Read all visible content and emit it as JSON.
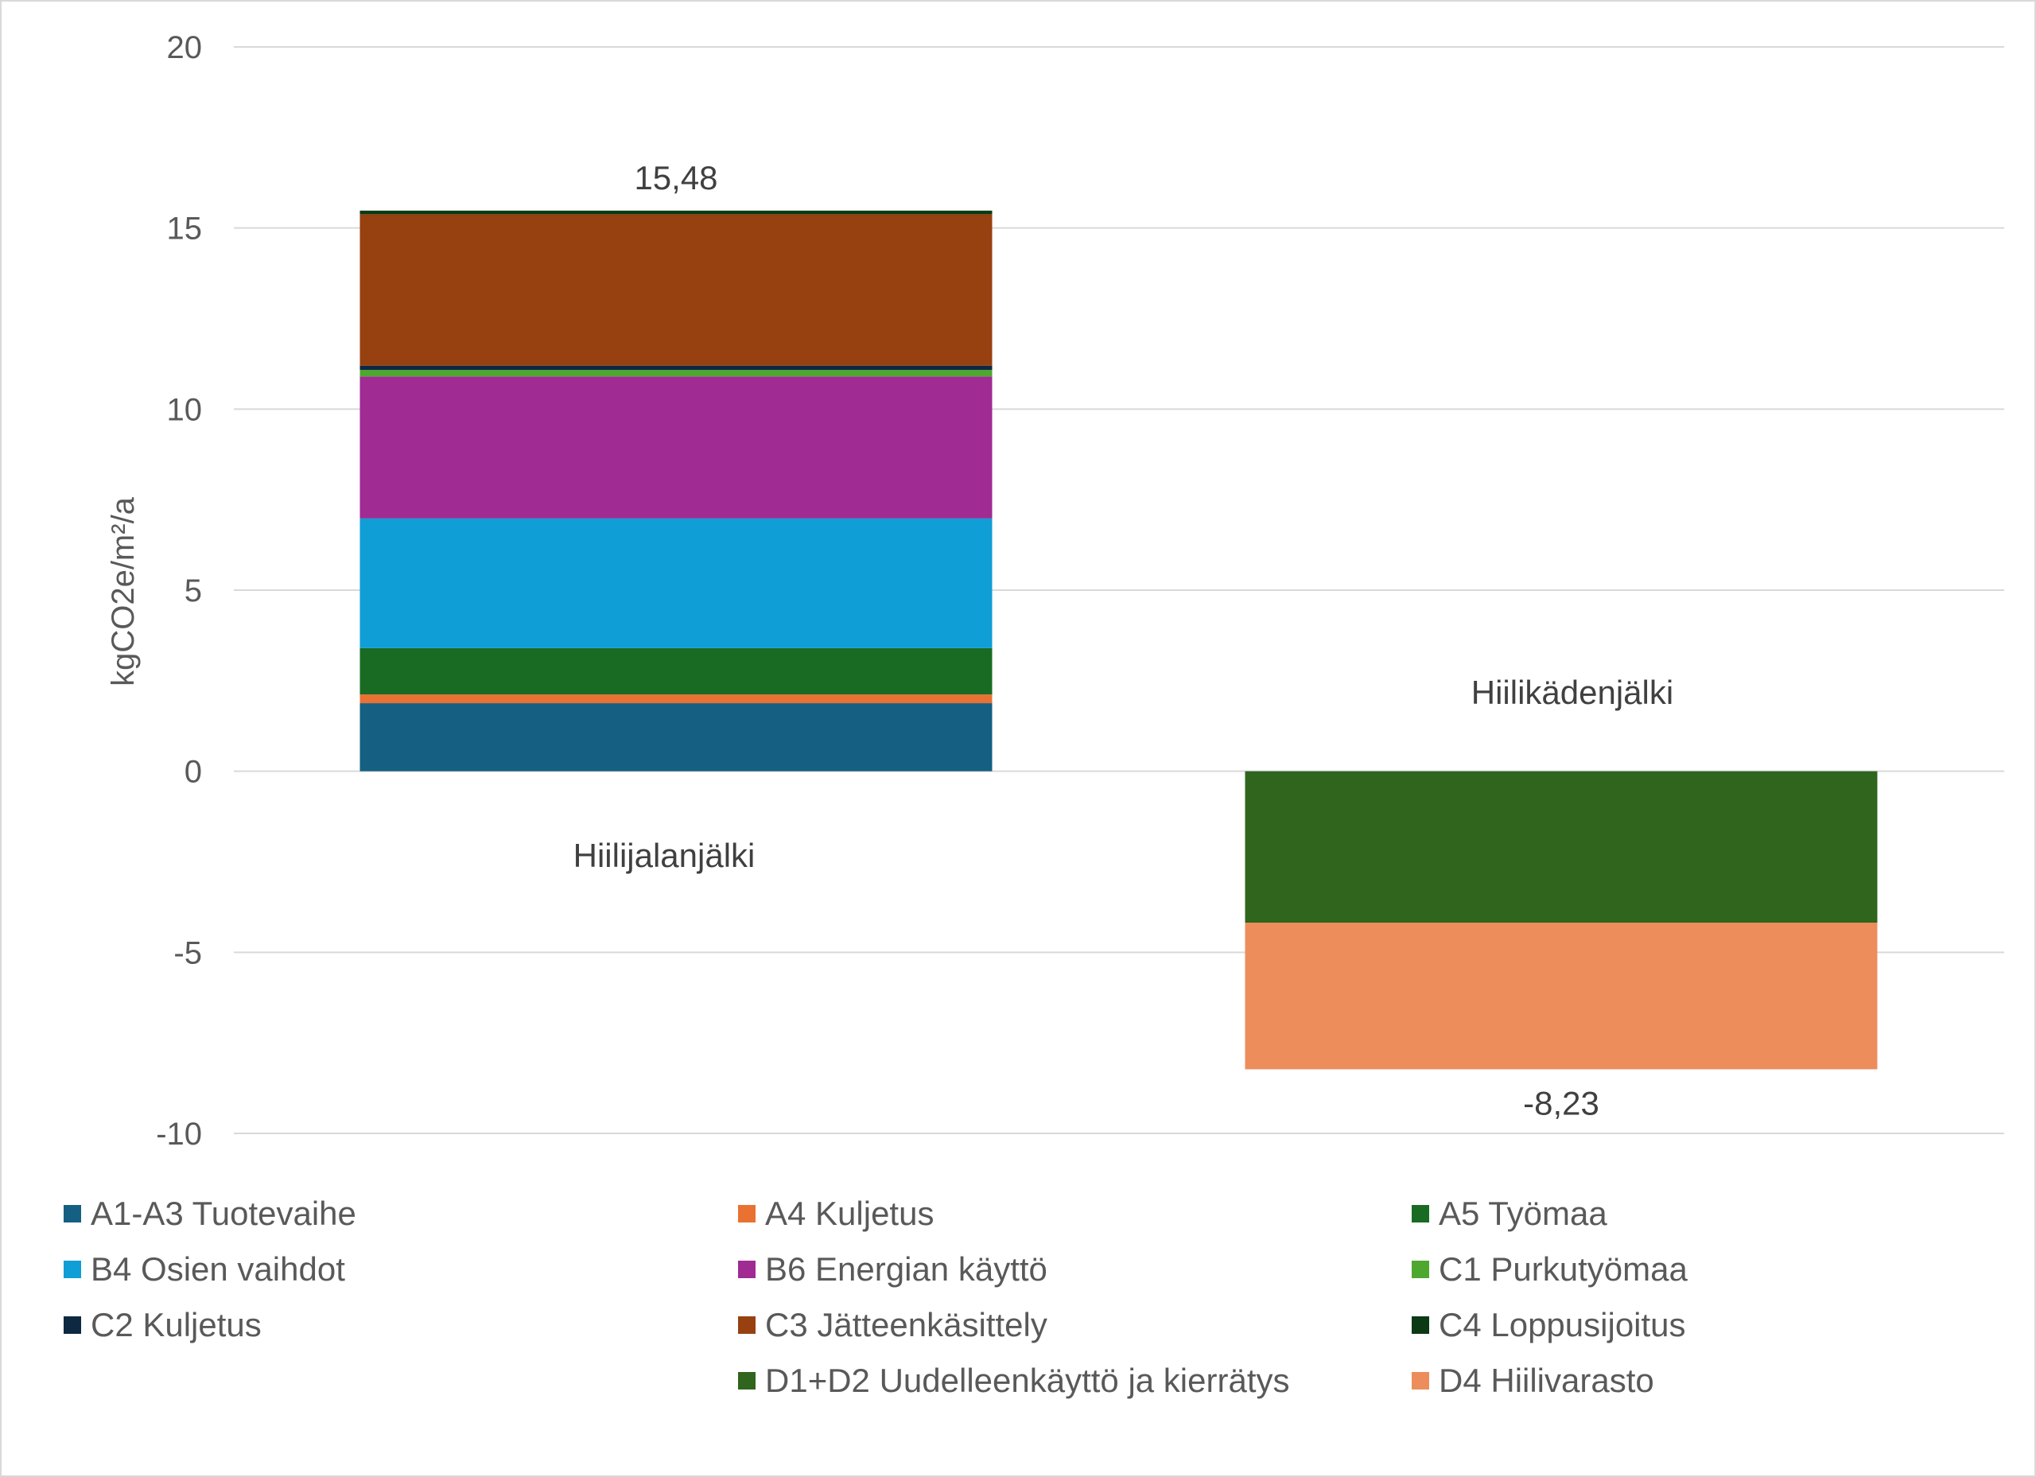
{
  "chart_data": {
    "type": "bar",
    "stacked": true,
    "ylabel": "kgCO2e/m²/a",
    "ylim": [
      -10,
      20
    ],
    "yticks": [
      -10,
      -5,
      0,
      5,
      10,
      15,
      20
    ],
    "grid": true,
    "legend_position": "bottom",
    "categories": [
      "Hiilijalanjälki",
      "Hiilikädenjälki"
    ],
    "totals": [
      {
        "category": "Hiilijalanjälki",
        "label": "15,48",
        "value": 15.48
      },
      {
        "category": "Hiilikädenjälki",
        "label": "-8,23",
        "value": -8.23
      }
    ],
    "series": [
      {
        "name": "A1-A3 Tuotevaihe",
        "color": "#156082",
        "values": [
          1.88,
          0
        ]
      },
      {
        "name": "A4 Kuljetus",
        "color": "#e97132",
        "values": [
          0.24,
          0
        ]
      },
      {
        "name": "A5 Työmaa",
        "color": "#196b24",
        "values": [
          1.28,
          0
        ]
      },
      {
        "name": "B4 Osien vaihdot",
        "color": "#0f9ed5",
        "values": [
          3.58,
          0
        ]
      },
      {
        "name": "B6 Energian käyttö",
        "color": "#a02b93",
        "values": [
          3.92,
          0
        ]
      },
      {
        "name": "C1 Purkutyömaa",
        "color": "#4ea72e",
        "values": [
          0.18,
          0
        ]
      },
      {
        "name": "C2 Kuljetus",
        "color": "#0e2841",
        "values": [
          0.12,
          0
        ]
      },
      {
        "name": "C3 Jätteenkäsittely",
        "color": "#974010",
        "values": [
          4.18,
          0
        ]
      },
      {
        "name": "C4 Loppusijoitus",
        "color": "#0b3a14",
        "values": [
          0.1,
          0
        ]
      },
      {
        "name": "D1+D2 Uudelleenkäyttö ja kierrätys",
        "color": "#2f651c",
        "values": [
          0,
          -4.18
        ]
      },
      {
        "name": "D4 Hiilivarasto",
        "color": "#ed8d5c",
        "values": [
          0,
          -4.05
        ]
      }
    ]
  }
}
